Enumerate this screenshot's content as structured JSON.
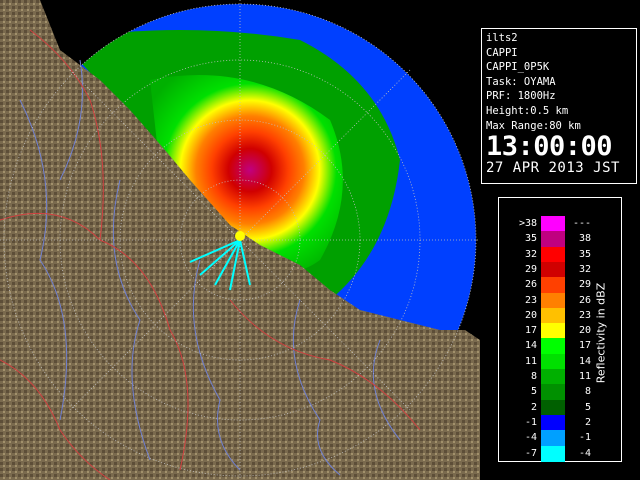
{
  "info": {
    "lines": [
      "ilts2",
      "CAPPI",
      "CAPPI_0P5K",
      "Task: OYAMA",
      "PRF: 1800Hz",
      "Height:0.5 km",
      "Max Range:80 km"
    ],
    "time": "13:00:00",
    "date": "27 APR 2013 JST"
  },
  "legend": {
    "unit_label": "Reflectivity in dBZ",
    "rows": [
      {
        "lo": ">38",
        "hi": "---",
        "color": "#ff00ff"
      },
      {
        "lo": "35",
        "hi": "38",
        "color": "#c00080"
      },
      {
        "lo": "32",
        "hi": "35",
        "color": "#ff0000"
      },
      {
        "lo": "29",
        "hi": "32",
        "color": "#d00000"
      },
      {
        "lo": "26",
        "hi": "29",
        "color": "#ff4000"
      },
      {
        "lo": "23",
        "hi": "26",
        "color": "#ff8000"
      },
      {
        "lo": "20",
        "hi": "23",
        "color": "#ffc000"
      },
      {
        "lo": "17",
        "hi": "20",
        "color": "#ffff00"
      },
      {
        "lo": "14",
        "hi": "17",
        "color": "#00ff00"
      },
      {
        "lo": "11",
        "hi": "14",
        "color": "#00e000"
      },
      {
        "lo": "8",
        "hi": "11",
        "color": "#00b000"
      },
      {
        "lo": "5",
        "hi": "8",
        "color": "#009000"
      },
      {
        "lo": "2",
        "hi": "5",
        "color": "#006000"
      },
      {
        "lo": "-1",
        "hi": "2",
        "color": "#0000ff"
      },
      {
        "lo": "-4",
        "hi": "-1",
        "color": "#00a0ff"
      },
      {
        "lo": "-7",
        "hi": "-4",
        "color": "#00ffff"
      }
    ]
  },
  "map": {
    "land_color": "#7a6a4e",
    "sea_color": "#000000",
    "river_color": "#7080d0",
    "border_color": "#d04040",
    "ring_color": "#c0c0c0"
  }
}
